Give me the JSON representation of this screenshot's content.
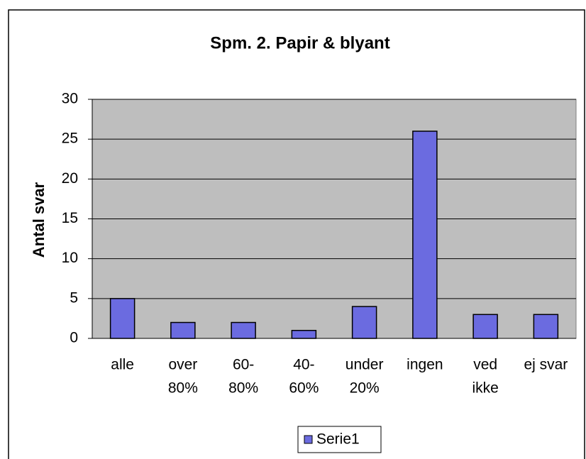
{
  "chart_data": {
    "type": "bar",
    "title": "Spm. 2. Papir & blyant",
    "y_label": "Antal svar",
    "categories": [
      [
        "alle"
      ],
      [
        "over",
        "80%"
      ],
      [
        "60-",
        "80%"
      ],
      [
        "40-",
        "60%"
      ],
      [
        "under",
        "20%"
      ],
      [
        "ingen"
      ],
      [
        "ved",
        "ikke"
      ],
      [
        "ej svar"
      ]
    ],
    "series": [
      {
        "name": "Serie1",
        "color": "#6b6be0",
        "values": [
          5,
          2,
          2,
          1,
          4,
          26,
          3,
          3
        ]
      }
    ],
    "ylim": [
      0,
      30
    ],
    "yticks": [
      0,
      5,
      10,
      15,
      20,
      25,
      30
    ],
    "grid": true,
    "legend": "bottom"
  }
}
